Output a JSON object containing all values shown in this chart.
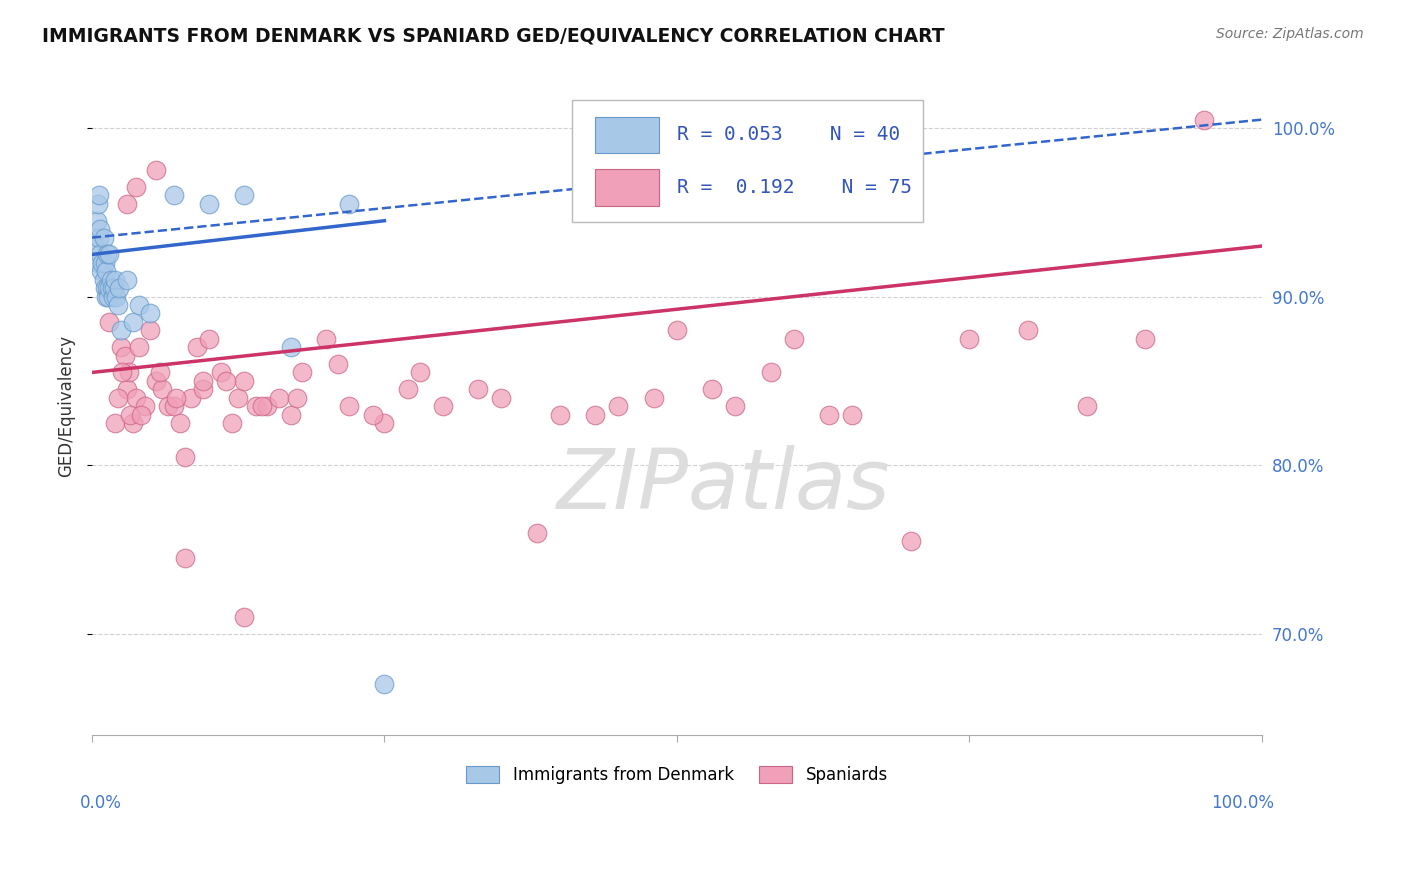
{
  "title": "IMMIGRANTS FROM DENMARK VS SPANIARD GED/EQUIVALENCY CORRELATION CHART",
  "source": "Source: ZipAtlas.com",
  "ylabel": "GED/Equivalency",
  "denmark_color": "#a8c8e8",
  "denmark_edge_color": "#6699cc",
  "spaniard_color": "#f0a0b8",
  "spaniard_edge_color": "#cc6688",
  "denmark_line_color": "#3366cc",
  "spaniard_line_color": "#cc3366",
  "xmin": 0.0,
  "xmax": 100.0,
  "ymin": 64.0,
  "ymax": 103.0,
  "yticks": [
    70.0,
    80.0,
    90.0,
    100.0
  ],
  "ytick_labels": [
    "70.0%",
    "80.0%",
    "90.0%",
    "100.0%"
  ],
  "xtick_left_label": "0.0%",
  "xtick_right_label": "100.0%",
  "grid_color": "#cccccc",
  "background_color": "#ffffff",
  "watermark": "ZIPatlas",
  "watermark_color": "#dddddd",
  "legend_r_dk": "R = 0.053",
  "legend_n_dk": "N = 40",
  "legend_r_sp": "R =  0.192",
  "legend_n_sp": "N = 75",
  "legend_label_dk": "Immigrants from Denmark",
  "legend_label_sp": "Spaniards",
  "dk_line_x0": 0.0,
  "dk_line_x1": 25.0,
  "dk_line_y0": 92.5,
  "dk_line_y1": 94.5,
  "dk_dashed_x0": 0.0,
  "dk_dashed_x1": 100.0,
  "dk_dashed_y0": 93.5,
  "dk_dashed_y1": 100.5,
  "sp_line_x0": 0.0,
  "sp_line_x1": 100.0,
  "sp_line_y0": 85.5,
  "sp_line_y1": 93.0,
  "denmark_x": [
    0.3,
    0.4,
    0.5,
    0.5,
    0.6,
    0.6,
    0.7,
    0.7,
    0.8,
    0.9,
    1.0,
    1.0,
    1.1,
    1.1,
    1.2,
    1.2,
    1.3,
    1.3,
    1.4,
    1.5,
    1.5,
    1.6,
    1.7,
    1.8,
    1.9,
    2.0,
    2.1,
    2.2,
    2.3,
    2.5,
    3.0,
    3.5,
    4.0,
    5.0,
    7.0,
    10.0,
    13.0,
    17.0,
    22.0,
    25.0
  ],
  "denmark_y": [
    93.0,
    94.5,
    92.0,
    95.5,
    93.5,
    96.0,
    92.5,
    94.0,
    91.5,
    92.0,
    91.0,
    93.5,
    90.5,
    92.0,
    90.0,
    91.5,
    90.5,
    92.5,
    90.0,
    90.5,
    92.5,
    91.0,
    90.5,
    90.0,
    90.5,
    91.0,
    90.0,
    89.5,
    90.5,
    88.0,
    91.0,
    88.5,
    89.5,
    89.0,
    96.0,
    95.5,
    96.0,
    87.0,
    95.5,
    67.0
  ],
  "spaniard_x": [
    1.5,
    2.0,
    2.5,
    2.8,
    3.0,
    3.2,
    3.5,
    3.8,
    4.0,
    4.5,
    5.0,
    5.5,
    6.0,
    6.5,
    7.0,
    7.5,
    8.0,
    8.5,
    9.0,
    9.5,
    10.0,
    11.0,
    12.0,
    12.5,
    13.0,
    14.0,
    15.0,
    16.0,
    17.0,
    18.0,
    20.0,
    22.0,
    25.0,
    28.0,
    30.0,
    35.0,
    40.0,
    45.0,
    50.0,
    55.0,
    60.0,
    65.0,
    70.0,
    75.0,
    80.0,
    85.0,
    90.0,
    95.0,
    2.2,
    2.6,
    3.3,
    4.2,
    5.8,
    7.2,
    9.5,
    11.5,
    14.5,
    17.5,
    21.0,
    24.0,
    27.0,
    33.0,
    38.0,
    43.0,
    48.0,
    53.0,
    58.0,
    63.0,
    3.0,
    3.8,
    5.5,
    8.0,
    13.0
  ],
  "spaniard_y": [
    88.5,
    82.5,
    87.0,
    86.5,
    84.5,
    85.5,
    82.5,
    84.0,
    87.0,
    83.5,
    88.0,
    85.0,
    84.5,
    83.5,
    83.5,
    82.5,
    80.5,
    84.0,
    87.0,
    84.5,
    87.5,
    85.5,
    82.5,
    84.0,
    85.0,
    83.5,
    83.5,
    84.0,
    83.0,
    85.5,
    87.5,
    83.5,
    82.5,
    85.5,
    83.5,
    84.0,
    83.0,
    83.5,
    88.0,
    83.5,
    87.5,
    83.0,
    75.5,
    87.5,
    88.0,
    83.5,
    87.5,
    100.5,
    84.0,
    85.5,
    83.0,
    83.0,
    85.5,
    84.0,
    85.0,
    85.0,
    83.5,
    84.0,
    86.0,
    83.0,
    84.5,
    84.5,
    76.0,
    83.0,
    84.0,
    84.5,
    85.5,
    83.0,
    95.5,
    96.5,
    97.5,
    74.5,
    71.0
  ]
}
